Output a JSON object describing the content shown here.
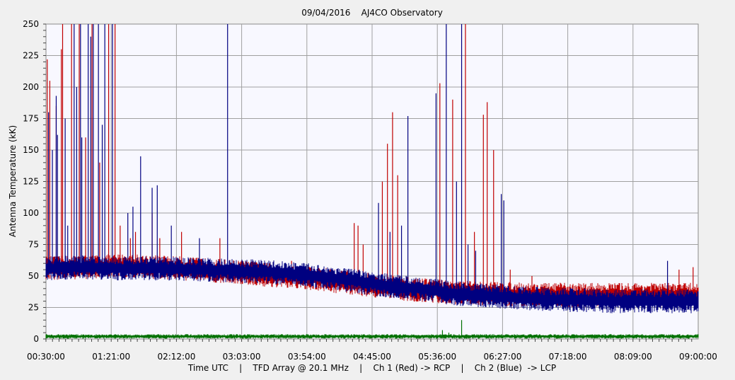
{
  "chart_data": {
    "type": "line",
    "title": "09/04/2016    AJ4CO Observatory",
    "ylabel": "Antenna Temperature (kK)",
    "xlabel": "Time UTC    |    TFD Array @ 20.1 MHz    |    Ch 1 (Red) -> RCP    |    Ch 2 (Blue)  -> LCP",
    "ylim": [
      0,
      250
    ],
    "y_ticks": [
      "0",
      "25",
      "50",
      "75",
      "100",
      "125",
      "150",
      "175",
      "200",
      "225",
      "250"
    ],
    "x_ticks": [
      "00:30:00",
      "01:21:00",
      "02:12:00",
      "03:03:00",
      "03:54:00",
      "04:45:00",
      "05:36:00",
      "06:27:00",
      "07:18:00",
      "08:09:00",
      "09:00:00"
    ],
    "x_range_minutes": [
      30,
      540
    ],
    "grid": true,
    "series": [
      {
        "color": "#c00000",
        "baseline": [
          [
            30,
            56
          ],
          [
            60,
            57
          ],
          [
            90,
            58
          ],
          [
            120,
            57
          ],
          [
            150,
            55
          ],
          [
            180,
            53
          ],
          [
            210,
            50
          ],
          [
            240,
            48
          ],
          [
            265,
            45
          ],
          [
            290,
            42
          ],
          [
            320,
            39
          ],
          [
            350,
            37
          ],
          [
            380,
            36
          ],
          [
            410,
            35
          ],
          [
            440,
            35
          ],
          [
            470,
            35
          ],
          [
            500,
            35
          ],
          [
            540,
            35
          ]
        ],
        "spikes": [
          [
            31,
            222
          ],
          [
            33,
            205
          ],
          [
            38,
            185
          ],
          [
            42,
            230
          ],
          [
            43,
            250
          ],
          [
            50,
            250
          ],
          [
            56,
            250
          ],
          [
            61,
            160
          ],
          [
            66,
            250
          ],
          [
            72,
            140
          ],
          [
            79,
            250
          ],
          [
            84,
            250
          ],
          [
            88,
            90
          ],
          [
            96,
            80
          ],
          [
            100,
            85
          ],
          [
            113,
            100
          ],
          [
            119,
            80
          ],
          [
            136,
            85
          ],
          [
            166,
            80
          ],
          [
            222,
            62
          ],
          [
            265,
            52
          ],
          [
            271,
            92
          ],
          [
            274,
            90
          ],
          [
            278,
            75
          ],
          [
            293,
            125
          ],
          [
            297,
            155
          ],
          [
            301,
            180
          ],
          [
            305,
            130
          ],
          [
            338,
            203
          ],
          [
            348,
            190
          ],
          [
            358,
            250
          ],
          [
            365,
            85
          ],
          [
            372,
            178
          ],
          [
            375,
            188
          ],
          [
            380,
            150
          ],
          [
            393,
            55
          ],
          [
            410,
            50
          ],
          [
            525,
            55
          ],
          [
            536,
            57
          ]
        ]
      },
      {
        "color": "#000080",
        "baseline": [
          [
            30,
            56
          ],
          [
            60,
            57
          ],
          [
            90,
            56
          ],
          [
            120,
            56
          ],
          [
            150,
            55
          ],
          [
            180,
            54
          ],
          [
            210,
            53
          ],
          [
            240,
            50
          ],
          [
            265,
            47
          ],
          [
            290,
            43
          ],
          [
            320,
            40
          ],
          [
            350,
            36
          ],
          [
            380,
            34
          ],
          [
            410,
            32
          ],
          [
            440,
            31
          ],
          [
            470,
            30
          ],
          [
            500,
            30
          ],
          [
            540,
            30
          ]
        ],
        "spikes": [
          [
            32,
            180
          ],
          [
            35,
            150
          ],
          [
            38,
            193
          ],
          [
            39,
            162
          ],
          [
            45,
            175
          ],
          [
            47,
            90
          ],
          [
            52,
            250
          ],
          [
            54,
            200
          ],
          [
            57,
            250
          ],
          [
            58,
            160
          ],
          [
            63,
            250
          ],
          [
            65,
            240
          ],
          [
            67,
            250
          ],
          [
            71,
            250
          ],
          [
            74,
            170
          ],
          [
            76,
            250
          ],
          [
            82,
            250
          ],
          [
            94,
            100
          ],
          [
            98,
            105
          ],
          [
            104,
            145
          ],
          [
            113,
            120
          ],
          [
            117,
            122
          ],
          [
            128,
            90
          ],
          [
            150,
            80
          ],
          [
            172,
            250
          ],
          [
            290,
            108
          ],
          [
            299,
            85
          ],
          [
            308,
            90
          ],
          [
            313,
            177
          ],
          [
            335,
            195
          ],
          [
            343,
            250
          ],
          [
            351,
            125
          ],
          [
            355,
            250
          ],
          [
            360,
            75
          ],
          [
            366,
            70
          ],
          [
            386,
            115
          ],
          [
            388,
            110
          ],
          [
            516,
            62
          ]
        ]
      },
      {
        "color": "#007000",
        "baseline": [
          [
            30,
            2
          ],
          [
            540,
            2
          ]
        ],
        "spikes": [
          [
            340,
            7
          ],
          [
            345,
            5
          ],
          [
            355,
            15
          ]
        ]
      }
    ]
  }
}
